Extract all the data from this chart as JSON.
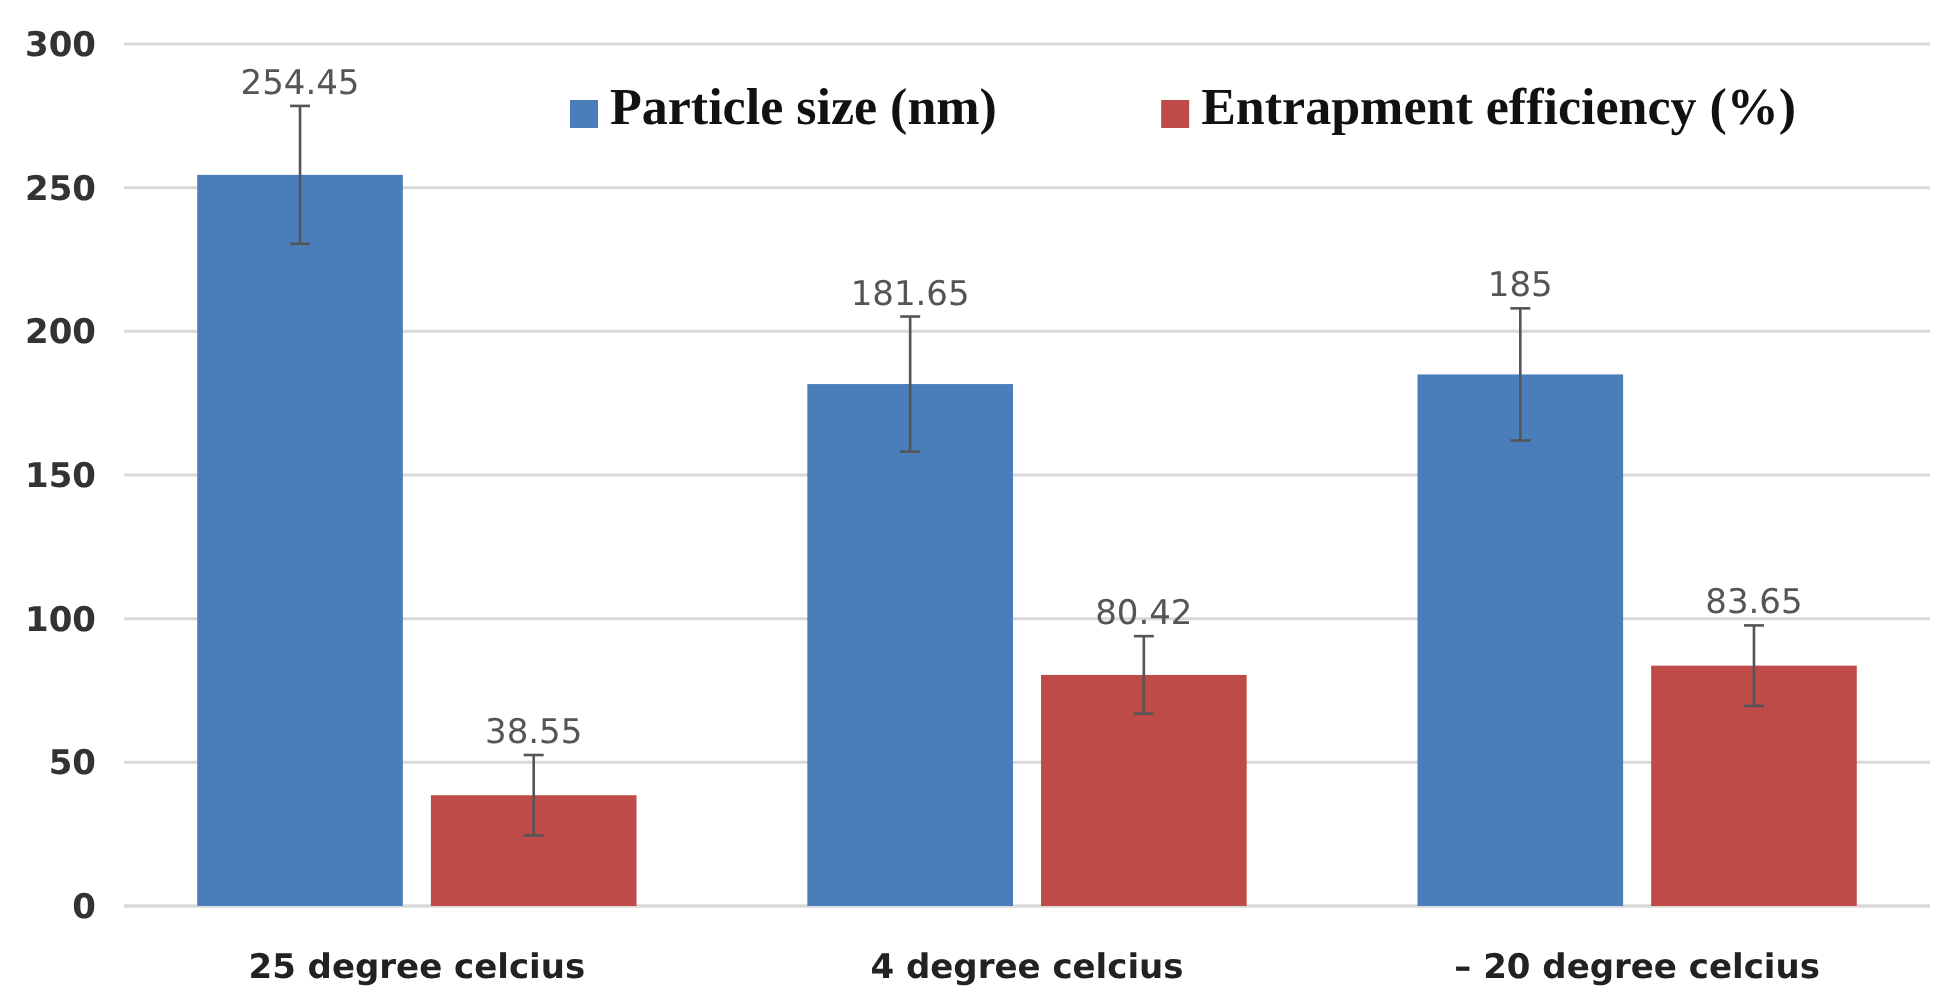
{
  "chart_data": {
    "type": "bar",
    "categories": [
      "25 degree celcius",
      "4 degree celcius",
      "– 20 degree celcius"
    ],
    "series": [
      {
        "name": "Particle size (nm)",
        "color": "#4a7ebb",
        "values": [
          254.45,
          181.65,
          185
        ],
        "errors": [
          24,
          23.5,
          23
        ]
      },
      {
        "name": "Entrapment efficiency (%)",
        "color": "#be4b48",
        "values": [
          38.55,
          80.42,
          83.65
        ],
        "errors": [
          14,
          13.5,
          14
        ]
      }
    ],
    "ylim": [
      0,
      300
    ],
    "yticks": [
      0,
      50,
      100,
      150,
      200,
      250,
      300
    ],
    "grid": "y",
    "legend": "top right",
    "data_labels": true
  }
}
